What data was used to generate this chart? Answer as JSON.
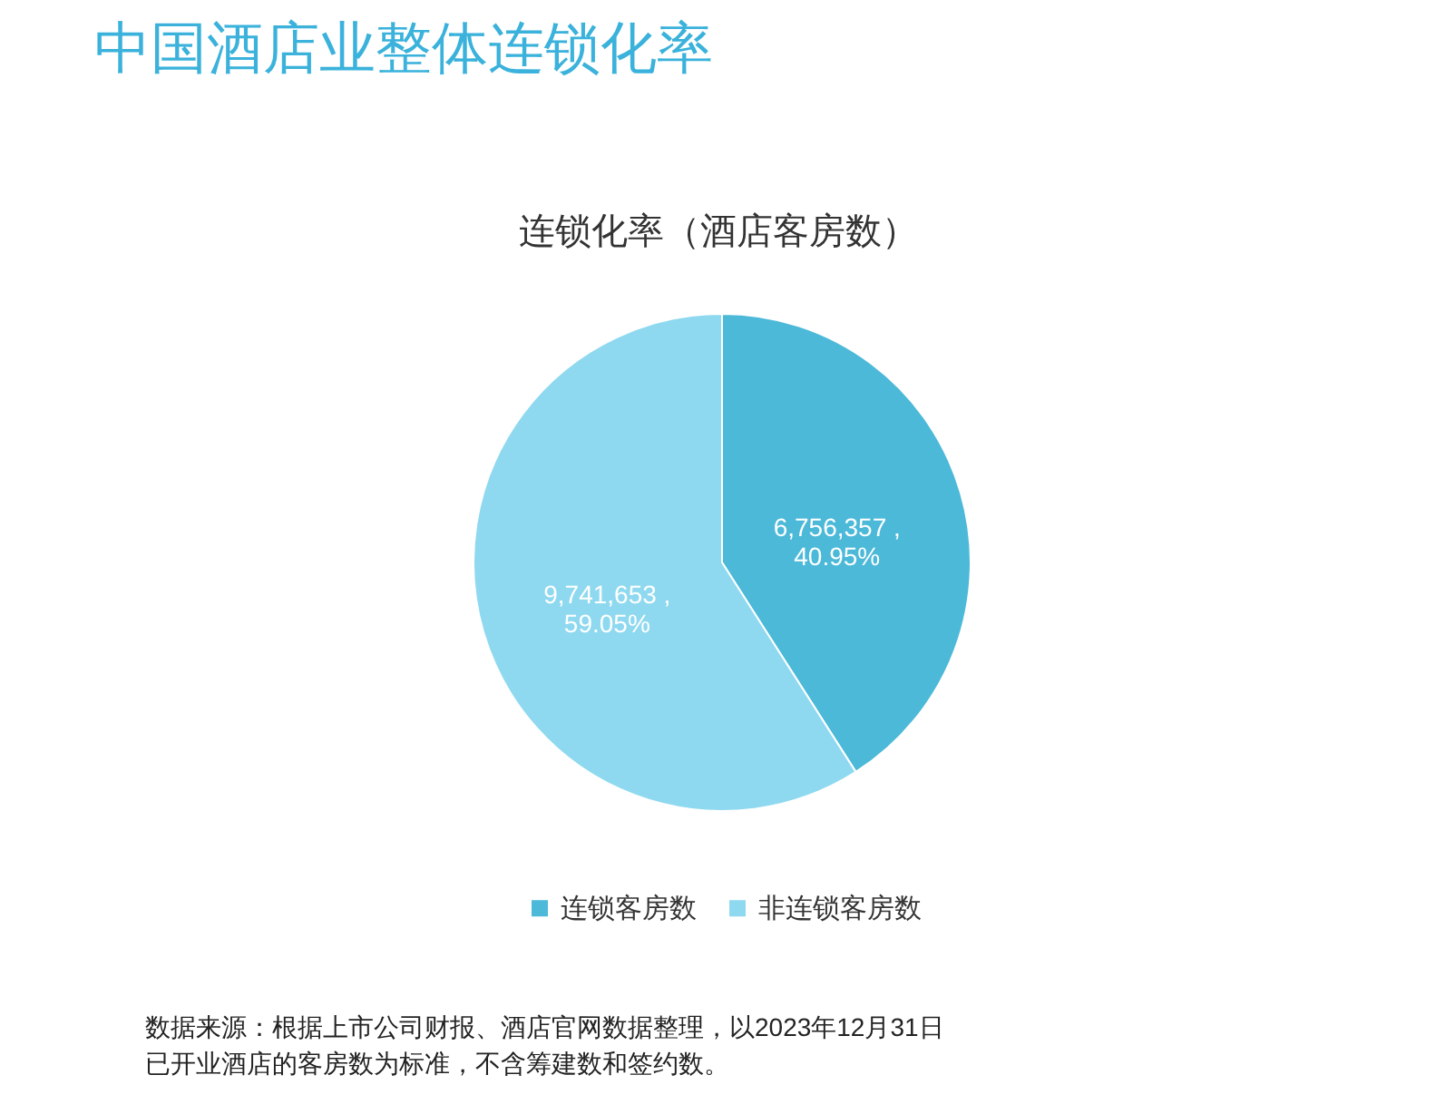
{
  "chart_data": {
    "type": "pie",
    "title": "中国酒店业整体连锁化率",
    "subtitle": "连锁化率（酒店客房数）",
    "categories": [
      "连锁客房数",
      "非连锁客房数"
    ],
    "values": [
      6756357,
      9741653
    ],
    "colors": [
      "#4cb9d9",
      "#8fd9f0"
    ],
    "value_labels": [
      "6,756,357 ,\n40.95%",
      "9,741,653 ,\n59.05%"
    ],
    "legend": "bottom",
    "annotations": [
      "数据来源：根据上市公司财报、酒店官网数据整理，以2023年12月31日",
      "已开业酒店的客房数为标准，不含筹建数和签约数。"
    ]
  }
}
